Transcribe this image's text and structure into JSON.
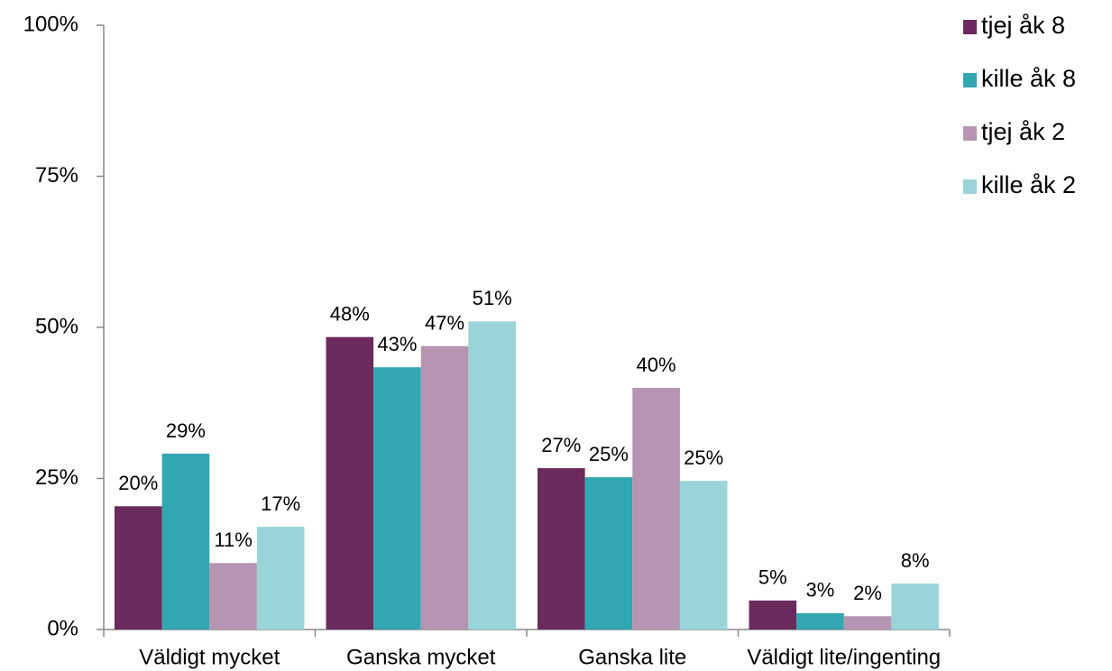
{
  "chart_data": {
    "type": "bar",
    "categories": [
      "Väldigt mycket",
      "Ganska mycket",
      "Ganska lite",
      "Väldigt lite/ingenting"
    ],
    "series": [
      {
        "name": "tjej åk 8",
        "color": "#6b2a5c",
        "values": [
          20.4,
          48.4,
          26.7,
          4.8
        ],
        "value_labels": [
          "20%",
          "48%",
          "27%",
          "5%"
        ]
      },
      {
        "name": "kille åk 8",
        "color": "#31a7b1",
        "values": [
          29.1,
          43.4,
          25.2,
          2.7
        ],
        "value_labels": [
          "29%",
          "43%",
          "25%",
          "3%"
        ]
      },
      {
        "name": "tjej åk 2",
        "color": "#b595b0",
        "values": [
          11,
          46.9,
          40,
          2.2
        ],
        "value_labels": [
          "11%",
          "47%",
          "40%",
          "2%"
        ]
      },
      {
        "name": "kille åk 2",
        "color": "#9bd4d8",
        "values": [
          17,
          51,
          24.6,
          7.6
        ],
        "value_labels": [
          "17%",
          "51%",
          "25%",
          "8%"
        ]
      }
    ],
    "ylim": [
      0,
      100
    ],
    "yticks": [
      {
        "value": 0,
        "label": "0%"
      },
      {
        "value": 25,
        "label": "25%"
      },
      {
        "value": 50,
        "label": "50%"
      },
      {
        "value": 75,
        "label": "75%"
      },
      {
        "value": 100,
        "label": "100%"
      }
    ],
    "legend": "top-right"
  }
}
